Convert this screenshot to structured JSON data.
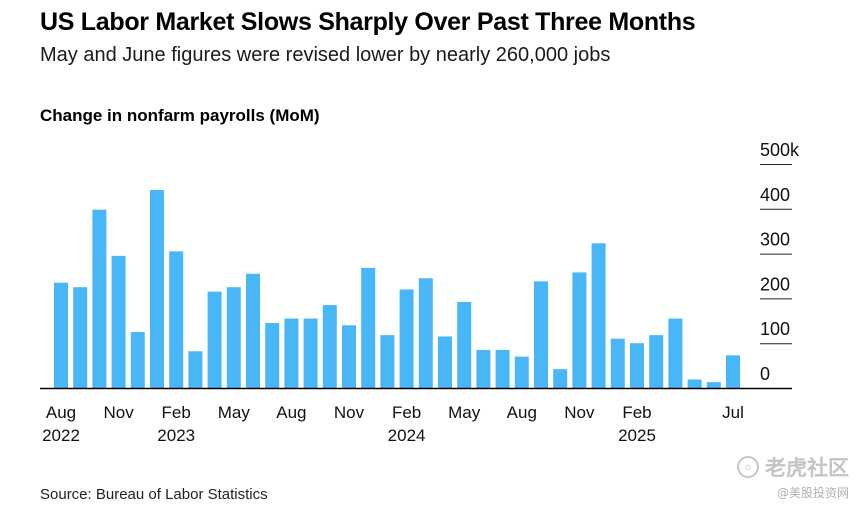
{
  "title": "US Labor Market Slows Sharply Over Past Three Months",
  "subtitle": "May and June figures were revised lower by nearly 260,000 jobs",
  "source": "Source: Bureau of Labor Statistics",
  "watermark": {
    "brand": "老虎社区",
    "handle": "@美股投资网",
    "logo_icon": "tiger-logo-icon"
  },
  "colors": {
    "bar": "#49b6f7",
    "gridline": "#222222",
    "axis": "#000000"
  },
  "chart_data": {
    "type": "bar",
    "title": "Change in nonfarm payrolls (MoM)",
    "xlabel": "",
    "ylabel": "",
    "ylim": [
      0,
      500
    ],
    "y_ticks": [
      {
        "value": 0,
        "label": "0"
      },
      {
        "value": 100,
        "label": "100"
      },
      {
        "value": 200,
        "label": "200"
      },
      {
        "value": 300,
        "label": "300"
      },
      {
        "value": 400,
        "label": "400"
      },
      {
        "value": 500,
        "label": "500k"
      }
    ],
    "grid": true,
    "categories": [
      "2022-08",
      "2022-09",
      "2022-10",
      "2022-11",
      "2022-12",
      "2023-01",
      "2023-02",
      "2023-03",
      "2023-04",
      "2023-05",
      "2023-06",
      "2023-07",
      "2023-08",
      "2023-09",
      "2023-10",
      "2023-11",
      "2023-12",
      "2024-01",
      "2024-02",
      "2024-03",
      "2024-04",
      "2024-05",
      "2024-06",
      "2024-07",
      "2024-08",
      "2024-09",
      "2024-10",
      "2024-11",
      "2024-12",
      "2025-01",
      "2025-02",
      "2025-03",
      "2025-04",
      "2025-05",
      "2025-06",
      "2025-07"
    ],
    "values": [
      235,
      225,
      398,
      295,
      125,
      442,
      305,
      82,
      215,
      225,
      255,
      145,
      155,
      155,
      185,
      140,
      268,
      118,
      220,
      245,
      115,
      192,
      85,
      85,
      70,
      238,
      42,
      258,
      323,
      110,
      100,
      118,
      155,
      19,
      13,
      73
    ],
    "x_tick_labels": [
      {
        "index": 0,
        "month": "Aug",
        "year": "2022"
      },
      {
        "index": 3,
        "month": "Nov",
        "year": ""
      },
      {
        "index": 6,
        "month": "Feb",
        "year": "2023"
      },
      {
        "index": 9,
        "month": "May",
        "year": ""
      },
      {
        "index": 12,
        "month": "Aug",
        "year": ""
      },
      {
        "index": 15,
        "month": "Nov",
        "year": ""
      },
      {
        "index": 18,
        "month": "Feb",
        "year": "2024"
      },
      {
        "index": 21,
        "month": "May",
        "year": ""
      },
      {
        "index": 24,
        "month": "Aug",
        "year": ""
      },
      {
        "index": 27,
        "month": "Nov",
        "year": ""
      },
      {
        "index": 30,
        "month": "Feb",
        "year": "2025"
      },
      {
        "index": 35,
        "month": "Jul",
        "year": ""
      }
    ]
  }
}
